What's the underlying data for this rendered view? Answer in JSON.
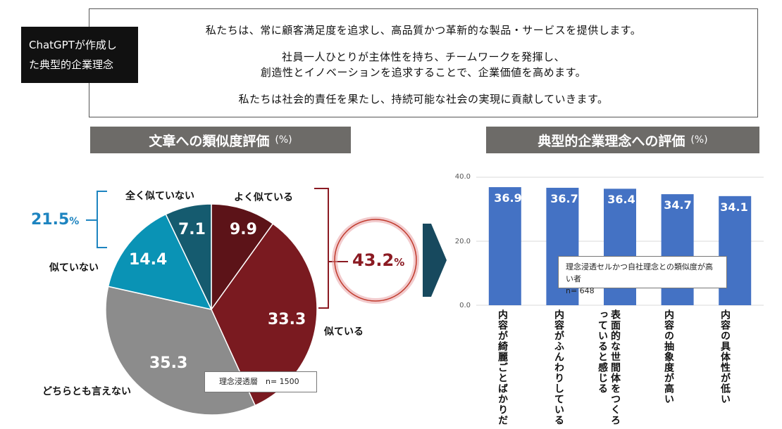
{
  "label_box": {
    "line1": "ChatGPTが作成し",
    "line2": "た典型的企業理念"
  },
  "philosophy": {
    "line1": "私たちは、常に顧客満足度を追求し、高品質かつ革新的な製品・サービスを提供します。",
    "line2": "社員一人ひとりが主体性を持ち、チームワークを発揮し、",
    "line3": "創造性とイノベーションを追求することで、企業価値を高めます。",
    "line4": "私たちは社会的責任を果たし、持続可能な社会の実現に貢献していきます。"
  },
  "left_header": {
    "title": "文章への類似度評価",
    "unit": "(%)"
  },
  "right_header": {
    "title": "典型的企業理念への評価",
    "unit": "(%)"
  },
  "pie_note": "理念浸透層　n= 1500",
  "pie_group_low": {
    "value": "21.5",
    "unit": "%"
  },
  "pie_group_high": {
    "value": "43.2",
    "unit": "%"
  },
  "bar_note": {
    "line1": "理念浸透セルかつ自社理念との類似度が高い者",
    "line2": "n= 648"
  },
  "colors": {
    "header_bg": "#6d6b68",
    "bar": "#4472c4",
    "pie_darkred": "#5c1318",
    "pie_red": "#7a1a20",
    "pie_gray": "#8c8c8c",
    "pie_teal": "#0a93b5",
    "pie_darkteal": "#155b6f",
    "accent_red": "#8b1a22",
    "accent_blue": "#1d84c0"
  },
  "chart_data": [
    {
      "type": "pie",
      "title": "文章への類似度評価",
      "categories": [
        "よく似ている",
        "似ている",
        "どちらとも言えない",
        "似ていない",
        "全く似ていない"
      ],
      "values": [
        9.9,
        33.3,
        35.3,
        14.4,
        7.1
      ]
    },
    {
      "type": "bar",
      "title": "典型的企業理念への評価",
      "categories": [
        "内容が綺麗ごとばかりだ",
        "内容がふんわりしている",
        "表面的な世間体をつくろっていると感じる",
        "内容の抽象度が高い",
        "内容の具体性が低い"
      ],
      "values": [
        36.9,
        36.7,
        36.4,
        34.7,
        34.1
      ],
      "ylim": [
        0,
        40
      ],
      "yticks": [
        "0.0",
        "20.0",
        "40.0"
      ],
      "grid": true
    }
  ]
}
